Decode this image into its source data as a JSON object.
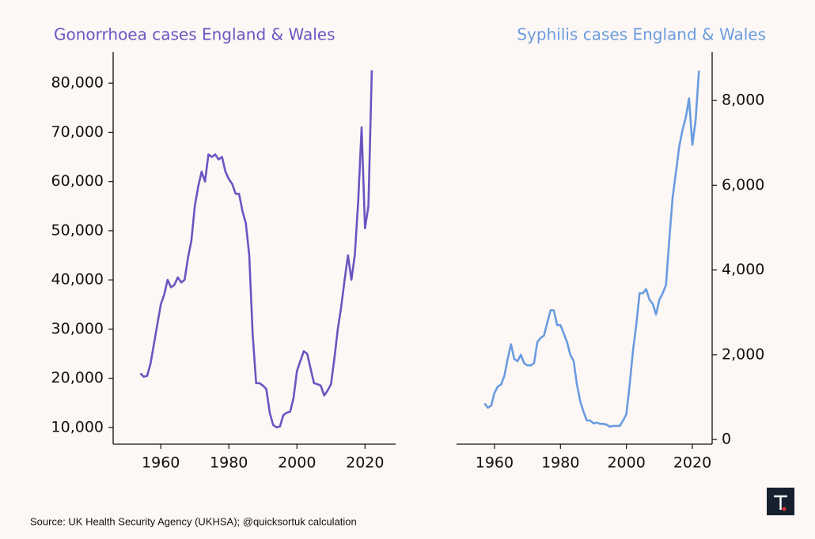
{
  "chart_data": [
    {
      "type": "line",
      "title": "Gonorrhoea cases England & Wales",
      "title_color": "#6a55c2",
      "yaxis_side": "left",
      "x": [
        1954,
        1955,
        1956,
        1957,
        1958,
        1959,
        1960,
        1961,
        1962,
        1963,
        1964,
        1965,
        1966,
        1967,
        1968,
        1969,
        1970,
        1971,
        1972,
        1973,
        1974,
        1975,
        1976,
        1977,
        1978,
        1979,
        1980,
        1981,
        1982,
        1983,
        1984,
        1985,
        1986,
        1987,
        1988,
        1989,
        1990,
        1991,
        1992,
        1993,
        1994,
        1995,
        1996,
        1997,
        1998,
        1999,
        2000,
        2001,
        2002,
        2003,
        2004,
        2005,
        2006,
        2007,
        2008,
        2009,
        2010,
        2011,
        2012,
        2013,
        2014,
        2015,
        2016,
        2017,
        2018,
        2019,
        2020,
        2021,
        2022
      ],
      "series": [
        {
          "name": "Gonorrhoea",
          "color": "#6a55c2",
          "values": [
            21000,
            20300,
            20500,
            23000,
            27000,
            31000,
            35000,
            37000,
            40000,
            38500,
            39000,
            40500,
            39500,
            40000,
            44500,
            48000,
            55000,
            59000,
            62000,
            60000,
            65500,
            65000,
            65500,
            64500,
            65000,
            62000,
            60500,
            59500,
            57500,
            57500,
            54000,
            51500,
            45000,
            29000,
            19000,
            19000,
            18500,
            17800,
            13000,
            10500,
            10000,
            10200,
            12500,
            13000,
            13200,
            16000,
            21500,
            23500,
            25500,
            25000,
            22000,
            19000,
            18800,
            18500,
            16500,
            17500,
            18800,
            24000,
            30000,
            34500,
            40000,
            45000,
            40000,
            45000,
            56000,
            71000,
            50500,
            55000,
            82600
          ]
        }
      ],
      "xlim": [
        1946,
        2029
      ],
      "xticks": [
        1960,
        1980,
        2000,
        2020
      ],
      "ylim": [
        6600,
        86300
      ],
      "yticks": [
        {
          "value": 10000,
          "label": "10,000"
        },
        {
          "value": 20000,
          "label": "20,000"
        },
        {
          "value": 30000,
          "label": "30,000"
        },
        {
          "value": 40000,
          "label": "40,000"
        },
        {
          "value": 50000,
          "label": "50,000"
        },
        {
          "value": 60000,
          "label": "60,000"
        },
        {
          "value": 70000,
          "label": "70,000"
        },
        {
          "value": 80000,
          "label": "80,000"
        }
      ]
    },
    {
      "type": "line",
      "title": "Syphilis cases England & Wales",
      "title_color": "#6a9be0",
      "yaxis_side": "right",
      "x": [
        1957,
        1958,
        1959,
        1960,
        1961,
        1962,
        1963,
        1964,
        1965,
        1966,
        1967,
        1968,
        1969,
        1970,
        1971,
        1972,
        1973,
        1974,
        1975,
        1976,
        1977,
        1978,
        1979,
        1980,
        1981,
        1982,
        1983,
        1984,
        1985,
        1986,
        1987,
        1988,
        1989,
        1990,
        1991,
        1992,
        1993,
        1994,
        1995,
        1996,
        1997,
        1998,
        1999,
        2000,
        2001,
        2002,
        2003,
        2004,
        2005,
        2006,
        2007,
        2008,
        2009,
        2010,
        2011,
        2012,
        2013,
        2014,
        2015,
        2016,
        2017,
        2018,
        2019,
        2020,
        2021,
        2022
      ],
      "series": [
        {
          "name": "Syphilis",
          "color": "#6a9be0",
          "values": [
            850,
            750,
            800,
            1100,
            1250,
            1300,
            1500,
            1900,
            2250,
            1900,
            1850,
            2000,
            1800,
            1750,
            1750,
            1800,
            2300,
            2400,
            2450,
            2750,
            3050,
            3050,
            2700,
            2700,
            2500,
            2300,
            2000,
            1850,
            1300,
            900,
            650,
            450,
            450,
            380,
            400,
            370,
            370,
            350,
            300,
            320,
            320,
            320,
            450,
            600,
            1300,
            2100,
            2700,
            3450,
            3450,
            3550,
            3300,
            3200,
            2950,
            3300,
            3450,
            3650,
            4700,
            5700,
            6300,
            6900,
            7300,
            7600,
            8050,
            6950,
            7550,
            8700
          ]
        }
      ],
      "xlim": [
        1948.5,
        2026
      ],
      "xticks": [
        1960,
        1980,
        2000,
        2020
      ],
      "ylim": [
        -110,
        9140
      ],
      "yticks": [
        0,
        {
          "value": 2000,
          "label": "2,000"
        },
        {
          "value": 4000,
          "label": "4,000"
        },
        {
          "value": 6000,
          "label": "6,000"
        },
        {
          "value": 8000,
          "label": "8,000"
        }
      ]
    }
  ],
  "source": "Source: UK Health Security Agency (UKHSA); @quicksortuk calculation"
}
